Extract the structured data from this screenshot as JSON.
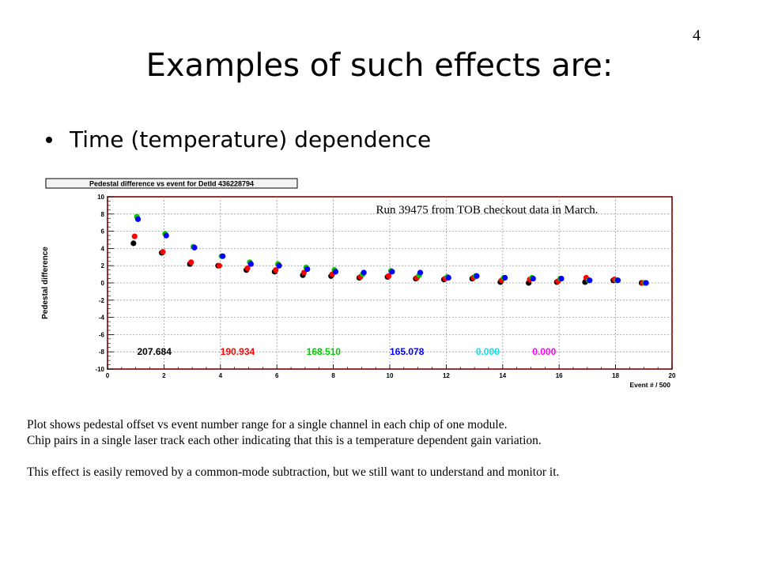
{
  "slide": {
    "number": "4",
    "title": "Examples of such effects are:",
    "bullet": "Time (temperature) dependence"
  },
  "chart_data": {
    "type": "scatter",
    "title": "Pedestal difference vs event for DetId 436228794",
    "xlabel": "Event # / 500",
    "ylabel": "Pedestal difference",
    "xlim": [
      0,
      20
    ],
    "ylim": [
      -10,
      10
    ],
    "x_ticks": [
      "0",
      "2",
      "4",
      "6",
      "8",
      "10",
      "12",
      "14",
      "16",
      "18",
      "20"
    ],
    "y_ticks": [
      "10",
      "8",
      "6",
      "4",
      "2",
      "0",
      "-2",
      "-4",
      "-6",
      "-8",
      "-10"
    ],
    "grid": true,
    "annotation": "Run 39475 from TOB checkout data in March.",
    "series": [
      {
        "color": "#000000",
        "x": [
          1,
          2,
          3,
          4,
          5,
          6,
          7,
          8,
          9,
          10,
          11,
          12,
          13,
          14,
          15,
          16,
          17,
          18,
          19
        ],
        "y": [
          4.6,
          3.5,
          2.2,
          2.0,
          1.5,
          1.3,
          0.9,
          0.8,
          0.6,
          0.7,
          0.5,
          0.4,
          0.5,
          0.1,
          0.0,
          0.1,
          0.1,
          0.3,
          0.0
        ]
      },
      {
        "color": "#ff0000",
        "x": [
          1,
          2,
          3,
          4,
          5,
          6,
          7,
          8,
          9,
          10,
          11,
          12,
          13,
          14,
          15,
          16,
          17,
          18,
          19
        ],
        "y": [
          5.4,
          3.6,
          2.4,
          2.0,
          1.7,
          1.5,
          1.2,
          1.0,
          0.7,
          0.8,
          0.6,
          0.5,
          0.6,
          0.3,
          0.4,
          0.2,
          0.6,
          0.4,
          0.0
        ]
      },
      {
        "color": "#00cc00",
        "x": [
          1,
          2,
          3,
          4,
          5,
          6,
          7,
          8,
          9,
          10,
          11,
          12,
          13,
          14,
          15,
          16,
          17,
          18,
          19
        ],
        "y": [
          7.7,
          5.7,
          4.2,
          3.1,
          2.4,
          2.2,
          1.8,
          1.5,
          1.0,
          1.4,
          0.9,
          0.7,
          0.8,
          0.6,
          0.6,
          0.5,
          0.3,
          0.3,
          0.0
        ]
      },
      {
        "color": "#0000ff",
        "x": [
          1,
          2,
          3,
          4,
          5,
          6,
          7,
          8,
          9,
          10,
          11,
          12,
          13,
          14,
          15,
          16,
          17,
          18,
          19
        ],
        "y": [
          7.4,
          5.5,
          4.1,
          3.1,
          2.2,
          2.0,
          1.6,
          1.3,
          1.2,
          1.3,
          1.2,
          0.6,
          0.8,
          0.6,
          0.5,
          0.5,
          0.3,
          0.3,
          0.0
        ]
      }
    ],
    "chip_values": [
      {
        "label": "207.684",
        "color": "#000000"
      },
      {
        "label": "190.934",
        "color": "#ff0000"
      },
      {
        "label": "168.510",
        "color": "#00cc00"
      },
      {
        "label": "165.078",
        "color": "#0000ff"
      },
      {
        "label": "0.000",
        "color": "#00e5ee"
      },
      {
        "label": "0.000",
        "color": "#ff00ff"
      }
    ]
  },
  "caption": {
    "line1": "Plot shows pedestal offset vs  event number range for a single channel in each chip of one module.",
    "line2": "Chip pairs in a single laser track each other indicating that this is a temperature dependent gain variation.",
    "line3": "This effect is easily removed by a common-mode subtraction, but we still want to understand and monitor it."
  }
}
